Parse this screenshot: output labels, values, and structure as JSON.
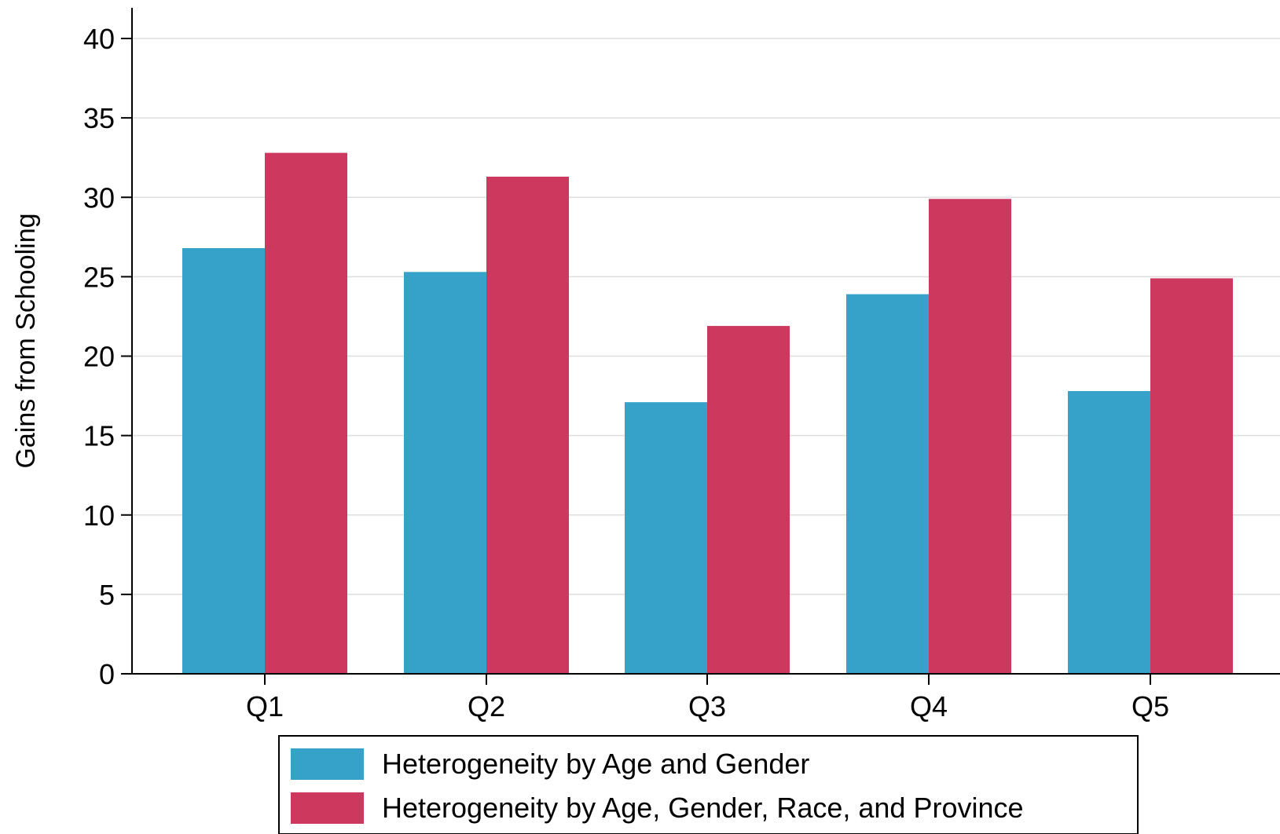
{
  "chart_data": {
    "type": "bar",
    "categories": [
      "Q1",
      "Q2",
      "Q3",
      "Q4",
      "Q5"
    ],
    "series": [
      {
        "name": "Heterogeneity by Age and Gender",
        "color": "#36A2C9",
        "values": [
          26.8,
          25.3,
          17.1,
          23.9,
          17.8
        ]
      },
      {
        "name": "Heterogeneity by Age, Gender, Race, and Province",
        "color": "#CD385E",
        "values": [
          32.8,
          31.3,
          21.9,
          29.9,
          24.9
        ]
      }
    ],
    "title": "",
    "xlabel": "",
    "ylabel": "Gains from Schooling",
    "ylim": [
      0,
      42
    ],
    "yticks": [
      0,
      5,
      10,
      15,
      20,
      25,
      30,
      35,
      40
    ],
    "grid": true,
    "legend": "bottom"
  }
}
